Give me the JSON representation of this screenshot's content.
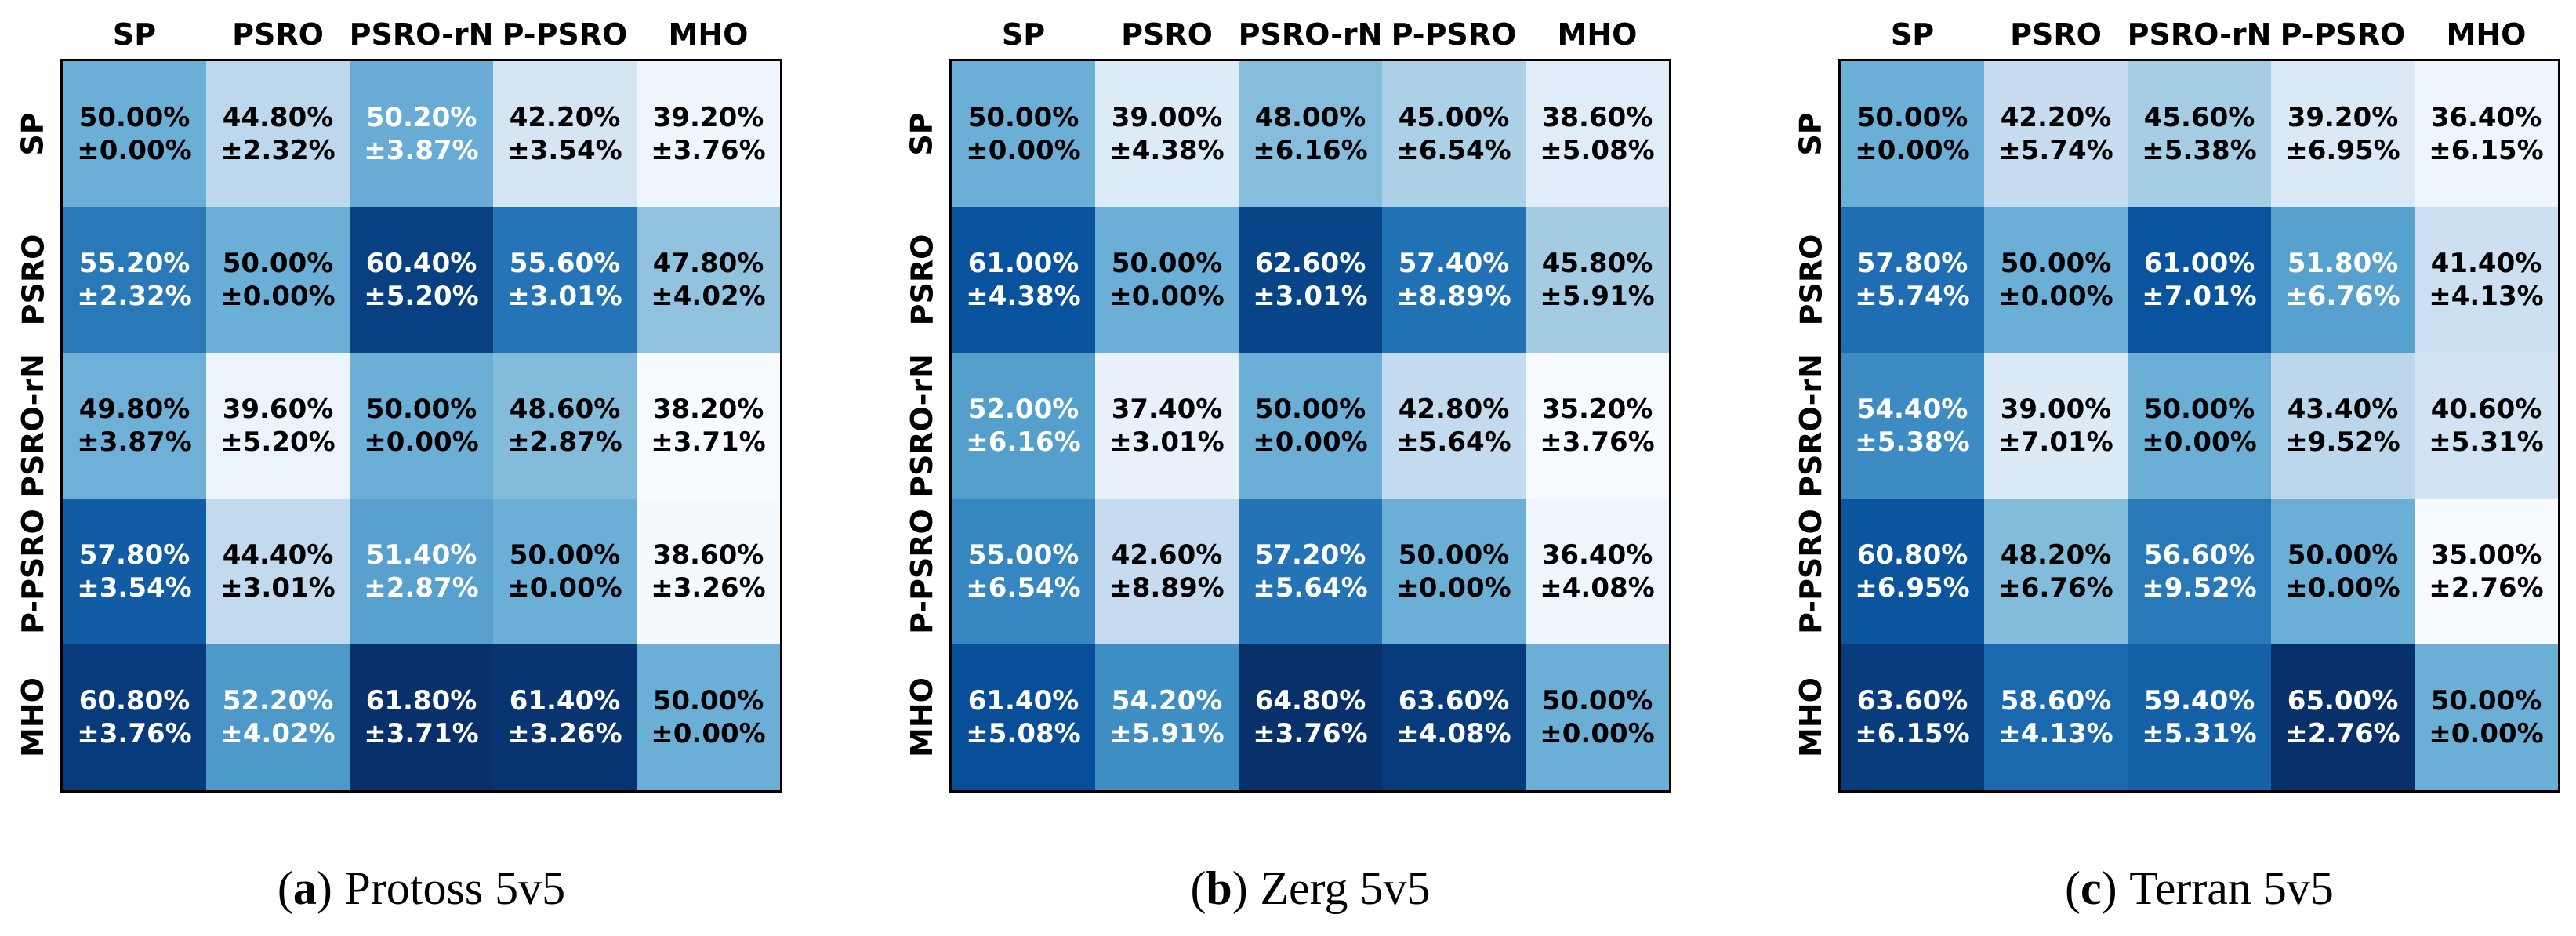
{
  "chart_data": [
    {
      "type": "heatmap",
      "panel": "a",
      "caption": {
        "open": "(",
        "letter": "a",
        "close": ")",
        "title": "Protoss 5v5"
      },
      "x_labels": [
        "SP",
        "PSRO",
        "PSRO-rN",
        "P-PSRO",
        "MHO"
      ],
      "y_labels": [
        "SP",
        "PSRO",
        "PSRO-rN",
        "P-PSRO",
        "MHO"
      ],
      "mean": [
        [
          50.0,
          44.8,
          50.2,
          42.2,
          39.2
        ],
        [
          55.2,
          50.0,
          60.4,
          55.6,
          47.8
        ],
        [
          49.8,
          39.6,
          50.0,
          48.6,
          38.2
        ],
        [
          57.8,
          44.4,
          51.4,
          50.0,
          38.6
        ],
        [
          60.8,
          52.2,
          61.8,
          61.4,
          50.0
        ]
      ],
      "std": [
        [
          0.0,
          2.32,
          3.87,
          3.54,
          3.76
        ],
        [
          2.32,
          0.0,
          5.2,
          3.01,
          4.02
        ],
        [
          3.87,
          5.2,
          0.0,
          2.87,
          3.71
        ],
        [
          3.54,
          3.01,
          2.87,
          0.0,
          3.26
        ],
        [
          3.76,
          4.02,
          3.71,
          3.26,
          0.0
        ]
      ],
      "vmin": 38.2,
      "vmax": 61.8
    },
    {
      "type": "heatmap",
      "panel": "b",
      "caption": {
        "open": "(",
        "letter": "b",
        "close": ")",
        "title": "Zerg 5v5"
      },
      "x_labels": [
        "SP",
        "PSRO",
        "PSRO-rN",
        "P-PSRO",
        "MHO"
      ],
      "y_labels": [
        "SP",
        "PSRO",
        "PSRO-rN",
        "P-PSRO",
        "MHO"
      ],
      "mean": [
        [
          50.0,
          39.0,
          48.0,
          45.0,
          38.6
        ],
        [
          61.0,
          50.0,
          62.6,
          57.4,
          45.8
        ],
        [
          52.0,
          37.4,
          50.0,
          42.8,
          35.2
        ],
        [
          55.0,
          42.6,
          57.2,
          50.0,
          36.4
        ],
        [
          61.4,
          54.2,
          64.8,
          63.6,
          50.0
        ]
      ],
      "std": [
        [
          0.0,
          4.38,
          6.16,
          6.54,
          5.08
        ],
        [
          4.38,
          0.0,
          3.01,
          8.89,
          5.91
        ],
        [
          6.16,
          3.01,
          0.0,
          5.64,
          3.76
        ],
        [
          6.54,
          8.89,
          5.64,
          0.0,
          4.08
        ],
        [
          5.08,
          5.91,
          3.76,
          4.08,
          0.0
        ]
      ],
      "vmin": 35.2,
      "vmax": 64.8
    },
    {
      "type": "heatmap",
      "panel": "c",
      "caption": {
        "open": "(",
        "letter": "c",
        "close": ")",
        "title": "Terran 5v5"
      },
      "x_labels": [
        "SP",
        "PSRO",
        "PSRO-rN",
        "P-PSRO",
        "MHO"
      ],
      "y_labels": [
        "SP",
        "PSRO",
        "PSRO-rN",
        "P-PSRO",
        "MHO"
      ],
      "mean": [
        [
          50.0,
          42.2,
          45.6,
          39.2,
          36.4
        ],
        [
          57.8,
          50.0,
          61.0,
          51.8,
          41.4
        ],
        [
          54.4,
          39.0,
          50.0,
          43.4,
          40.6
        ],
        [
          60.8,
          48.2,
          56.6,
          50.0,
          35.0
        ],
        [
          63.6,
          58.6,
          59.4,
          65.0,
          50.0
        ]
      ],
      "std": [
        [
          0.0,
          5.74,
          5.38,
          6.95,
          6.15
        ],
        [
          5.74,
          0.0,
          7.01,
          6.76,
          4.13
        ],
        [
          5.38,
          7.01,
          0.0,
          9.52,
          5.31
        ],
        [
          6.95,
          6.76,
          9.52,
          0.0,
          2.76
        ],
        [
          6.15,
          4.13,
          5.31,
          2.76,
          0.0
        ]
      ],
      "vmin": 35.0,
      "vmax": 65.0
    }
  ],
  "style": {
    "annotation_pattern": "{mean}%\n±{std}%",
    "colormap_name": "Blues",
    "colormap_anchors": [
      [
        0.0,
        "#f7fbff"
      ],
      [
        0.125,
        "#deebf7"
      ],
      [
        0.25,
        "#c6dbef"
      ],
      [
        0.375,
        "#9ecae1"
      ],
      [
        0.5,
        "#6baed6"
      ],
      [
        0.625,
        "#4292c6"
      ],
      [
        0.75,
        "#2171b5"
      ],
      [
        0.875,
        "#08519c"
      ],
      [
        1.0,
        "#08306b"
      ]
    ],
    "text_color_threshold": 50,
    "text_color_dark": "#000000",
    "text_color_light": "#ffffff",
    "border_color": "#000000",
    "background": "#ffffff"
  }
}
